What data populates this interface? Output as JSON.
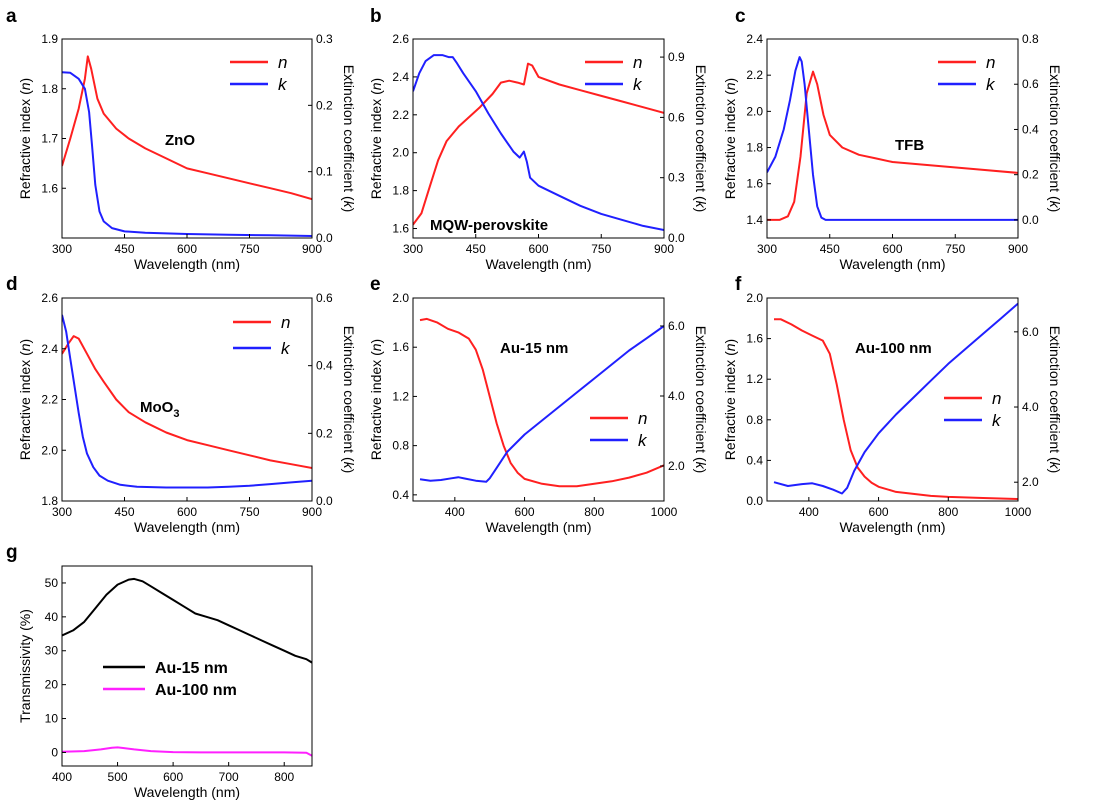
{
  "chart_data": [
    {
      "panel": "a",
      "type": "line",
      "label": "ZnO",
      "xlabel": "Wavelength (nm)",
      "ylabel_left": "Refractive index (n)",
      "ylabel_right": "Extinction coefficient (k)",
      "xlim": [
        300,
        900
      ],
      "xticks": [
        "300",
        "450",
        "600",
        "750",
        "900"
      ],
      "ylim_left": [
        1.5,
        1.9
      ],
      "yticks_left": [
        "1.6",
        "1.7",
        "1.8",
        "1.9"
      ],
      "ylim_right": [
        0,
        0.3
      ],
      "yticks_right": [
        "0.0",
        "0.1",
        "0.2",
        "0.3"
      ],
      "legend": [
        "n",
        "k"
      ],
      "legend_placement": "top-right",
      "series": [
        {
          "name": "n",
          "axis": "left",
          "color": "#ff2020",
          "x": [
            300,
            320,
            340,
            355,
            362,
            370,
            385,
            400,
            430,
            460,
            500,
            550,
            600,
            650,
            700,
            750,
            800,
            850,
            900
          ],
          "y": [
            1.645,
            1.7,
            1.76,
            1.82,
            1.865,
            1.84,
            1.78,
            1.75,
            1.72,
            1.7,
            1.68,
            1.66,
            1.64,
            1.63,
            1.62,
            1.61,
            1.6,
            1.59,
            1.578
          ]
        },
        {
          "name": "k",
          "axis": "right",
          "color": "#2020ff",
          "x": [
            300,
            320,
            340,
            355,
            365,
            372,
            380,
            390,
            400,
            420,
            450,
            500,
            600,
            700,
            800,
            900
          ],
          "y": [
            0.25,
            0.249,
            0.24,
            0.225,
            0.19,
            0.14,
            0.08,
            0.04,
            0.025,
            0.015,
            0.01,
            0.008,
            0.006,
            0.005,
            0.004,
            0.003
          ]
        }
      ]
    },
    {
      "panel": "b",
      "type": "line",
      "label": "MQW-perovskite",
      "xlabel": "Wavelength (nm)",
      "ylabel_left": "Refractive index (n)",
      "ylabel_right": "Extinction coefficient (k)",
      "xlim": [
        300,
        900
      ],
      "xticks": [
        "300",
        "450",
        "600",
        "750",
        "900"
      ],
      "ylim_left": [
        1.55,
        2.6
      ],
      "yticks_left": [
        "1.6",
        "1.8",
        "2.0",
        "2.2",
        "2.4",
        "2.6"
      ],
      "ylim_right": [
        0,
        0.99
      ],
      "yticks_right": [
        "0.0",
        "0.3",
        "0.6",
        "0.9"
      ],
      "legend": [
        "n",
        "k"
      ],
      "legend_placement": "top-right",
      "series": [
        {
          "name": "n",
          "axis": "left",
          "color": "#ff2020",
          "x": [
            300,
            320,
            340,
            360,
            380,
            395,
            410,
            430,
            460,
            490,
            510,
            530,
            550,
            565,
            575,
            585,
            600,
            650,
            700,
            750,
            800,
            850,
            900
          ],
          "y": [
            1.62,
            1.68,
            1.82,
            1.96,
            2.06,
            2.1,
            2.14,
            2.18,
            2.24,
            2.31,
            2.37,
            2.38,
            2.37,
            2.36,
            2.47,
            2.46,
            2.4,
            2.36,
            2.33,
            2.3,
            2.27,
            2.24,
            2.21
          ]
        },
        {
          "name": "k",
          "axis": "right",
          "color": "#2020ff",
          "x": [
            300,
            315,
            330,
            350,
            370,
            385,
            395,
            405,
            420,
            450,
            480,
            510,
            540,
            555,
            565,
            572,
            580,
            600,
            650,
            700,
            750,
            800,
            850,
            900
          ],
          "y": [
            0.73,
            0.82,
            0.88,
            0.91,
            0.91,
            0.9,
            0.9,
            0.87,
            0.82,
            0.73,
            0.62,
            0.52,
            0.43,
            0.4,
            0.43,
            0.38,
            0.3,
            0.26,
            0.21,
            0.16,
            0.12,
            0.09,
            0.06,
            0.04
          ]
        }
      ]
    },
    {
      "panel": "c",
      "type": "line",
      "label": "TFB",
      "xlabel": "Wavelength (nm)",
      "ylabel_left": "Refractive index (n)",
      "ylabel_right": "Extinction coefficient (k)",
      "xlim": [
        300,
        900
      ],
      "xticks": [
        "300",
        "450",
        "600",
        "750",
        "900"
      ],
      "ylim_left": [
        1.3,
        2.4
      ],
      "yticks_left": [
        "1.4",
        "1.6",
        "1.8",
        "2.0",
        "2.2",
        "2.4"
      ],
      "ylim_right": [
        -0.08,
        0.8
      ],
      "yticks_right": [
        "0.0",
        "0.2",
        "0.4",
        "0.6",
        "0.8"
      ],
      "legend": [
        "n",
        "k"
      ],
      "legend_placement": "top-right",
      "series": [
        {
          "name": "n",
          "axis": "left",
          "color": "#ff2020",
          "x": [
            300,
            330,
            350,
            365,
            380,
            395,
            410,
            420,
            435,
            450,
            480,
            520,
            560,
            600,
            700,
            800,
            900
          ],
          "y": [
            1.4,
            1.4,
            1.42,
            1.5,
            1.75,
            2.1,
            2.22,
            2.15,
            1.98,
            1.87,
            1.8,
            1.76,
            1.74,
            1.72,
            1.7,
            1.68,
            1.66
          ]
        },
        {
          "name": "k",
          "axis": "right",
          "color": "#2020ff",
          "x": [
            300,
            320,
            340,
            355,
            368,
            378,
            383,
            390,
            400,
            410,
            420,
            430,
            440,
            500,
            600,
            700,
            800,
            900
          ],
          "y": [
            0.21,
            0.28,
            0.4,
            0.53,
            0.66,
            0.72,
            0.7,
            0.6,
            0.4,
            0.2,
            0.06,
            0.01,
            0.0,
            0.0,
            0.0,
            0.0,
            0.0,
            0.0
          ]
        }
      ]
    },
    {
      "panel": "d",
      "type": "line",
      "label": "MoO",
      "label_sub": "3",
      "xlabel": "Wavelength (nm)",
      "ylabel_left": "Refractive index (n)",
      "ylabel_right": "Extinction coefficient (k)",
      "xlim": [
        300,
        900
      ],
      "xticks": [
        "300",
        "450",
        "600",
        "750",
        "900"
      ],
      "ylim_left": [
        1.8,
        2.6
      ],
      "yticks_left": [
        "1.8",
        "2.0",
        "2.2",
        "2.4",
        "2.6"
      ],
      "ylim_right": [
        0,
        0.6
      ],
      "yticks_right": [
        "0.0",
        "0.2",
        "0.4",
        "0.6"
      ],
      "legend": [
        "n",
        "k"
      ],
      "legend_placement": "top-right",
      "series": [
        {
          "name": "n",
          "axis": "left",
          "color": "#ff2020",
          "x": [
            300,
            315,
            328,
            340,
            360,
            380,
            400,
            430,
            460,
            500,
            550,
            600,
            650,
            700,
            750,
            800,
            850,
            900
          ],
          "y": [
            2.38,
            2.42,
            2.45,
            2.44,
            2.38,
            2.32,
            2.27,
            2.2,
            2.15,
            2.11,
            2.07,
            2.04,
            2.02,
            2.0,
            1.98,
            1.96,
            1.945,
            1.93
          ]
        },
        {
          "name": "k",
          "axis": "right",
          "color": "#2020ff",
          "x": [
            300,
            310,
            320,
            330,
            340,
            350,
            360,
            375,
            390,
            410,
            440,
            480,
            550,
            600,
            650,
            700,
            750,
            800,
            850,
            900
          ],
          "y": [
            0.55,
            0.5,
            0.42,
            0.34,
            0.26,
            0.19,
            0.14,
            0.1,
            0.075,
            0.06,
            0.048,
            0.042,
            0.04,
            0.04,
            0.04,
            0.042,
            0.045,
            0.05,
            0.055,
            0.06
          ]
        }
      ]
    },
    {
      "panel": "e",
      "type": "line",
      "label": "Au-15 nm",
      "xlabel": "Wavelength (nm)",
      "ylabel_left": "Refractive index (n)",
      "ylabel_right": "Extinction coefficient (k)",
      "xlim": [
        280,
        1000
      ],
      "xticks": [
        "400",
        "600",
        "800",
        "1000"
      ],
      "ylim_left": [
        0.35,
        2.0
      ],
      "yticks_left": [
        "0.4",
        "0.8",
        "1.2",
        "1.6",
        "2.0"
      ],
      "ylim_right": [
        1.0,
        6.8
      ],
      "yticks_right": [
        "2.0",
        "4.0",
        "6.0"
      ],
      "legend": [
        "n",
        "k"
      ],
      "legend_placement": "center-right",
      "series": [
        {
          "name": "n",
          "axis": "left",
          "color": "#ff2020",
          "x": [
            300,
            320,
            350,
            380,
            410,
            440,
            460,
            480,
            500,
            520,
            540,
            560,
            580,
            600,
            650,
            700,
            750,
            800,
            850,
            900,
            950,
            1000
          ],
          "y": [
            1.82,
            1.83,
            1.8,
            1.75,
            1.72,
            1.67,
            1.58,
            1.42,
            1.2,
            0.98,
            0.8,
            0.66,
            0.58,
            0.53,
            0.49,
            0.47,
            0.47,
            0.49,
            0.51,
            0.54,
            0.58,
            0.64
          ]
        },
        {
          "name": "k",
          "axis": "right",
          "color": "#2020ff",
          "x": [
            300,
            330,
            360,
            390,
            410,
            430,
            460,
            490,
            500,
            520,
            550,
            600,
            650,
            700,
            750,
            800,
            850,
            900,
            950,
            1000
          ],
          "y": [
            1.62,
            1.58,
            1.6,
            1.65,
            1.68,
            1.64,
            1.58,
            1.55,
            1.65,
            1.95,
            2.4,
            2.9,
            3.3,
            3.7,
            4.1,
            4.5,
            4.9,
            5.3,
            5.65,
            6.0
          ]
        }
      ]
    },
    {
      "panel": "f",
      "type": "line",
      "label": "Au-100 nm",
      "xlabel": "Wavelength (nm)",
      "ylabel_left": "Refractive index (n)",
      "ylabel_right": "Extinction coefficient (k)",
      "xlim": [
        280,
        1000
      ],
      "xticks": [
        "400",
        "600",
        "800",
        "1000"
      ],
      "ylim_left": [
        0,
        2.0
      ],
      "yticks_left": [
        "0.0",
        "0.4",
        "0.8",
        "1.2",
        "1.6",
        "2.0"
      ],
      "ylim_right": [
        1.5,
        6.9
      ],
      "yticks_right": [
        "2.0",
        "4.0",
        "6.0"
      ],
      "legend": [
        "n",
        "k"
      ],
      "legend_placement": "center-right",
      "series": [
        {
          "name": "n",
          "axis": "left",
          "color": "#ff2020",
          "x": [
            300,
            320,
            350,
            380,
            410,
            440,
            460,
            480,
            500,
            520,
            540,
            560,
            580,
            600,
            650,
            700,
            750,
            800,
            900,
            1000
          ],
          "y": [
            1.79,
            1.79,
            1.74,
            1.68,
            1.63,
            1.58,
            1.45,
            1.15,
            0.8,
            0.5,
            0.33,
            0.24,
            0.18,
            0.14,
            0.09,
            0.07,
            0.05,
            0.04,
            0.03,
            0.02
          ]
        },
        {
          "name": "k",
          "axis": "right",
          "color": "#2020ff",
          "x": [
            300,
            340,
            380,
            410,
            440,
            470,
            495,
            510,
            530,
            560,
            600,
            650,
            700,
            750,
            800,
            850,
            900,
            950,
            1000
          ],
          "y": [
            2.0,
            1.9,
            1.95,
            1.97,
            1.9,
            1.8,
            1.7,
            1.85,
            2.3,
            2.8,
            3.3,
            3.8,
            4.25,
            4.7,
            5.15,
            5.55,
            5.95,
            6.35,
            6.75
          ]
        }
      ]
    },
    {
      "panel": "g",
      "type": "line",
      "xlabel": "Wavelength (nm)",
      "ylabel": "Transmissivity (%)",
      "xlim": [
        400,
        850
      ],
      "xticks": [
        "400",
        "500",
        "600",
        "700",
        "800"
      ],
      "ylim": [
        -4,
        55
      ],
      "yticks": [
        "0",
        "10",
        "20",
        "30",
        "40",
        "50"
      ],
      "legend": [
        "Au-15 nm",
        "Au-100 nm"
      ],
      "legend_placement": "lower-left",
      "series": [
        {
          "name": "Au-15 nm",
          "color": "#000000",
          "x": [
            400,
            420,
            440,
            460,
            480,
            500,
            520,
            530,
            545,
            560,
            580,
            600,
            620,
            640,
            660,
            680,
            700,
            720,
            740,
            760,
            780,
            800,
            820,
            840,
            850
          ],
          "y": [
            34.5,
            36.0,
            38.5,
            42.5,
            46.5,
            49.5,
            51.0,
            51.2,
            50.5,
            49.0,
            47.0,
            45.0,
            43.0,
            41.0,
            40.0,
            39.0,
            37.5,
            36.0,
            34.5,
            33.0,
            31.5,
            30.0,
            28.5,
            27.5,
            26.5
          ]
        },
        {
          "name": "Au-100 nm",
          "color": "#ff20ff",
          "x": [
            400,
            440,
            470,
            490,
            500,
            510,
            530,
            560,
            600,
            650,
            700,
            750,
            800,
            840,
            850
          ],
          "y": [
            0.2,
            0.4,
            0.9,
            1.4,
            1.5,
            1.3,
            0.9,
            0.4,
            0.1,
            0.0,
            0.0,
            0.0,
            0.0,
            -0.1,
            -1.0
          ]
        }
      ]
    }
  ],
  "panel_letters": [
    "a",
    "b",
    "c",
    "d",
    "e",
    "f",
    "g"
  ],
  "axis_text": {
    "wavelength": "Wavelength (nm)",
    "refractive": "Refractive index (",
    "extinction": "Extinction coefficient (",
    "var_n": "n",
    "var_k": "k",
    "close_paren": ")",
    "transmissivity": "Transmissivity (%)"
  }
}
